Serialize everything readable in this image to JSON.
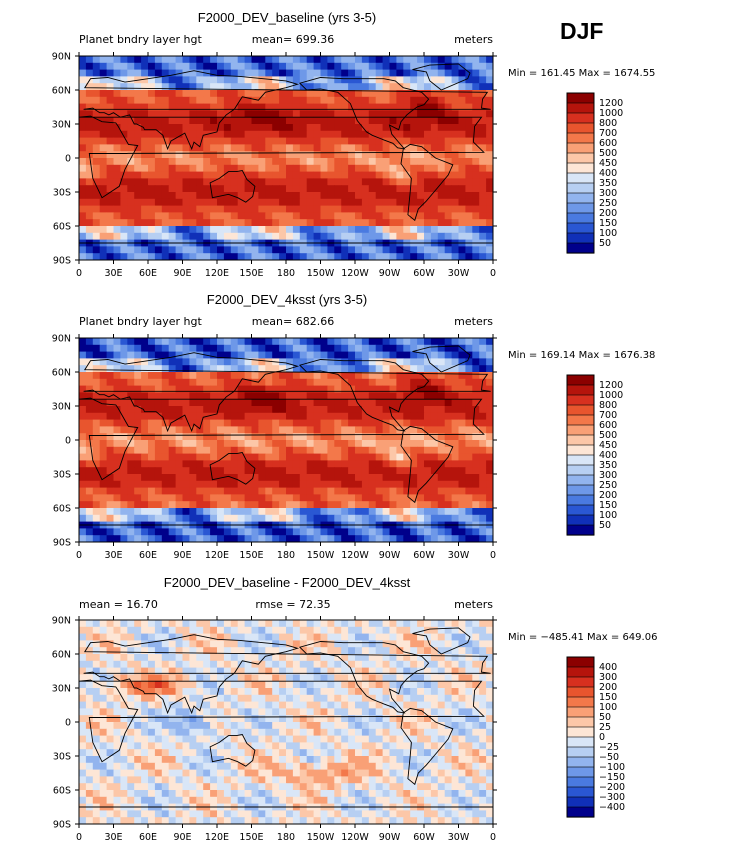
{
  "figure": {
    "season": "DJF"
  },
  "chart_data": [
    {
      "type": "heatmap",
      "title": "F2000_DEV_baseline (yrs 3-5)",
      "subtitle_left": "Planet bndry layer hgt",
      "subtitle_center": "mean= 699.36",
      "subtitle_right": "meters",
      "minmax_label": "Min = 161.45 Max = 1674.55",
      "min": 161.45,
      "max": 1674.55,
      "mean": 699.36,
      "x_ticks": [
        "0",
        "30E",
        "60E",
        "90E",
        "120E",
        "150E",
        "180",
        "150W",
        "120W",
        "90W",
        "60W",
        "30W",
        "0"
      ],
      "y_ticks": [
        "90N",
        "60N",
        "30N",
        "0",
        "30S",
        "60S",
        "90S"
      ],
      "xlim": [
        0,
        360
      ],
      "ylim": [
        -90,
        90
      ],
      "colorbar": {
        "labels": [
          "1200",
          "1000",
          "800",
          "700",
          "600",
          "500",
          "450",
          "400",
          "350",
          "300",
          "250",
          "200",
          "150",
          "100",
          "50"
        ],
        "colors": [
          "#8b0000",
          "#b5140c",
          "#d7301f",
          "#e8552e",
          "#f3784a",
          "#f9a076",
          "#fcc7a8",
          "#fde6d6",
          "#d9e6f7",
          "#b7cff2",
          "#92b4ee",
          "#6e98e8",
          "#4a7ae0",
          "#2a57d3",
          "#1030b8",
          "#00008b"
        ]
      },
      "pattern": "pbl"
    },
    {
      "type": "heatmap",
      "title": "F2000_DEV_4ksst (yrs 3-5)",
      "subtitle_left": "Planet bndry layer hgt",
      "subtitle_center": "mean= 682.66",
      "subtitle_right": "meters",
      "minmax_label": "Min = 169.14 Max = 1676.38",
      "min": 169.14,
      "max": 1676.38,
      "mean": 682.66,
      "x_ticks": [
        "0",
        "30E",
        "60E",
        "90E",
        "120E",
        "150E",
        "180",
        "150W",
        "120W",
        "90W",
        "60W",
        "30W",
        "0"
      ],
      "y_ticks": [
        "90N",
        "60N",
        "30N",
        "0",
        "30S",
        "60S",
        "90S"
      ],
      "xlim": [
        0,
        360
      ],
      "ylim": [
        -90,
        90
      ],
      "colorbar": {
        "labels": [
          "1200",
          "1000",
          "800",
          "700",
          "600",
          "500",
          "450",
          "400",
          "350",
          "300",
          "250",
          "200",
          "150",
          "100",
          "50"
        ],
        "colors": [
          "#8b0000",
          "#b5140c",
          "#d7301f",
          "#e8552e",
          "#f3784a",
          "#f9a076",
          "#fcc7a8",
          "#fde6d6",
          "#d9e6f7",
          "#b7cff2",
          "#92b4ee",
          "#6e98e8",
          "#4a7ae0",
          "#2a57d3",
          "#1030b8",
          "#00008b"
        ]
      },
      "pattern": "pbl"
    },
    {
      "type": "heatmap",
      "title": "F2000_DEV_baseline - F2000_DEV_4ksst",
      "subtitle_left": "mean =  16.70",
      "subtitle_center": "rmse =  72.35",
      "subtitle_right": "meters",
      "minmax_label": "Min = −485.41 Max = 649.06",
      "min": -485.41,
      "max": 649.06,
      "mean": 16.7,
      "rmse": 72.35,
      "x_ticks": [
        "0",
        "30E",
        "60E",
        "90E",
        "120E",
        "150E",
        "180",
        "150W",
        "120W",
        "90W",
        "60W",
        "30W",
        "0"
      ],
      "y_ticks": [
        "90N",
        "60N",
        "30N",
        "0",
        "30S",
        "60S",
        "90S"
      ],
      "xlim": [
        0,
        360
      ],
      "ylim": [
        -90,
        90
      ],
      "colorbar": {
        "labels": [
          "400",
          "300",
          "200",
          "150",
          "100",
          "50",
          "25",
          "0",
          "−25",
          "−50",
          "−100",
          "−150",
          "−200",
          "−300",
          "−400"
        ],
        "colors": [
          "#8b0000",
          "#b5140c",
          "#d7301f",
          "#e8552e",
          "#f3784a",
          "#f9a076",
          "#fcc7a8",
          "#fde6d6",
          "#d9e6f7",
          "#b7cff2",
          "#92b4ee",
          "#6e98e8",
          "#4a7ae0",
          "#2a57d3",
          "#1030b8",
          "#00008b"
        ]
      },
      "pattern": "diff"
    }
  ]
}
